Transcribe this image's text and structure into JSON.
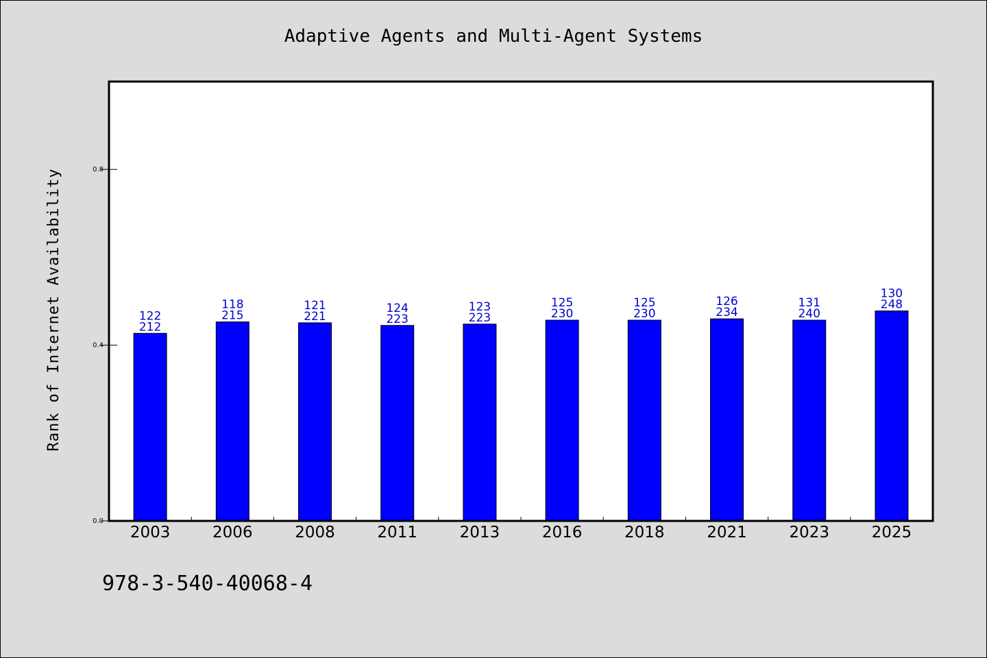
{
  "chart_data": {
    "type": "bar",
    "title": "Adaptive Agents and Multi-Agent Systems",
    "ylabel": "Rank of Internet Availability",
    "xlabel": "",
    "categories": [
      "2003",
      "2006",
      "2008",
      "2011",
      "2013",
      "2016",
      "2018",
      "2021",
      "2023",
      "2025"
    ],
    "values": [
      0.427,
      0.453,
      0.451,
      0.445,
      0.448,
      0.457,
      0.457,
      0.46,
      0.457,
      0.478
    ],
    "bar_labels": [
      [
        "122",
        "212"
      ],
      [
        "118",
        "215"
      ],
      [
        "121",
        "221"
      ],
      [
        "124",
        "223"
      ],
      [
        "123",
        "223"
      ],
      [
        "125",
        "230"
      ],
      [
        "125",
        "230"
      ],
      [
        "126",
        "234"
      ],
      [
        "131",
        "240"
      ],
      [
        "130",
        "248"
      ]
    ],
    "ylim": [
      0,
      1.0
    ],
    "yticks": [
      0.0,
      0.4,
      0.8
    ],
    "ytick_labels": [
      "0.0",
      "0.4",
      "0.8"
    ],
    "grid": false,
    "bar_color": "#0000ff",
    "label_color": "#0000cc"
  },
  "footer": {
    "isbn": "978-3-540-40068-4"
  }
}
